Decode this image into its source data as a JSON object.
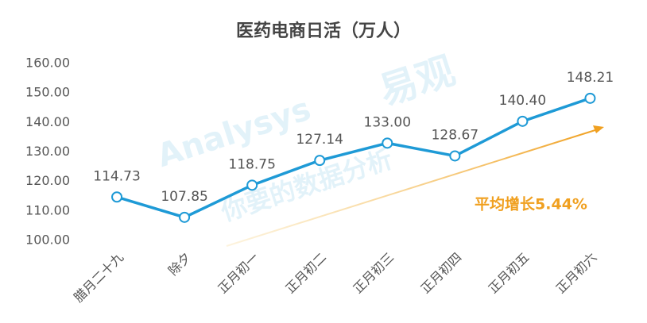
{
  "chart_data": {
    "type": "line",
    "title": "医药电商日活（万人）",
    "categories": [
      "腊月二十九",
      "除夕",
      "正月初一",
      "正月初二",
      "正月初三",
      "正月初四",
      "正月初五",
      "正月初六"
    ],
    "series": [
      {
        "color": "#1e9ad6",
        "values": [
          114.73,
          107.85,
          118.75,
          127.14,
          133.0,
          128.67,
          140.4,
          148.21
        ],
        "value_labels": [
          "114.73",
          "107.85",
          "118.75",
          "127.14",
          "133.00",
          "128.67",
          "140.40",
          "148.21"
        ]
      }
    ],
    "ylim": [
      100,
      160
    ],
    "yticks": [
      {
        "value": 100,
        "label": "100.00"
      },
      {
        "value": 110,
        "label": "110.00"
      },
      {
        "value": 120,
        "label": "120.00"
      },
      {
        "value": 130,
        "label": "130.00"
      },
      {
        "value": 140,
        "label": "140.00"
      },
      {
        "value": 150,
        "label": "150.00"
      },
      {
        "value": 160,
        "label": "160.00"
      }
    ],
    "annotation": "平均增长5.44%",
    "annotation_color": "#f0a020",
    "watermark": [
      "Analysys",
      "易观",
      "你要的数据分析"
    ]
  }
}
